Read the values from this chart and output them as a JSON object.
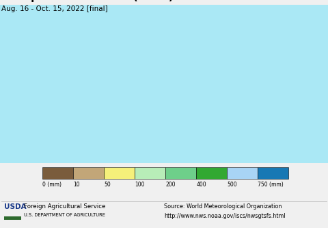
{
  "subtitle": "Aug. 16 - Oct. 15, 2022 [final]",
  "colorbar_colors": [
    "#7a5c3c",
    "#c2a678",
    "#f5f07a",
    "#b8edb8",
    "#6ecf8a",
    "#32a832",
    "#a8d4f5",
    "#1878b4"
  ],
  "colorbar_labels": [
    "0 (mm)",
    "10",
    "50",
    "100",
    "200",
    "400",
    "500",
    "750 (mm)"
  ],
  "footer_left_line1": "Foreign Agricultural Service",
  "footer_left_line2": "U.S. DEPARTMENT OF AGRICULTURE",
  "footer_right_line1": "Source: World Meteorological Organization",
  "footer_right_line2": "http://www.nws.noaa.gov/iscs/nwsgtsfs.html",
  "map_background": "#aae8f5",
  "fig_background": "#f0f0f0",
  "title_fontsize": 11,
  "subtitle_fontsize": 7.5,
  "usda_color": "#1a3a8a",
  "usda_green": "#2d6a2d",
  "map_url": "https://www.nws.noaa.gov/iscs/nwsgtsfs.html"
}
